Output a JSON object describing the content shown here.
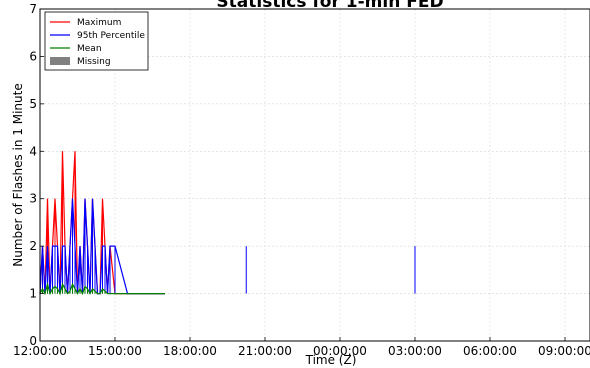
{
  "chart_data": {
    "type": "line",
    "title": "Statistics for 1-min FED",
    "xlabel": "Time (Z)",
    "ylabel": "Number of Flashes in 1 Minute",
    "xlim": [
      "12:00:00",
      "10:00:00"
    ],
    "ylim": [
      0,
      7
    ],
    "x_tick_labels": [
      "12:00:00",
      "15:00:00",
      "18:00:00",
      "21:00:00",
      "00:00:00",
      "03:00:00",
      "06:00:00",
      "09:00:00"
    ],
    "x_tick_offsets_hours": [
      0,
      3,
      6,
      9,
      12,
      15,
      18,
      21
    ],
    "y_ticks": [
      0,
      1,
      2,
      3,
      4,
      5,
      6,
      7
    ],
    "grid": true,
    "legend_position": "top-left",
    "series": [
      {
        "name": "Maximum",
        "color": "#ff0000",
        "x": [
          "12:00:00",
          "12:06:00",
          "12:12:00",
          "12:18:00",
          "12:24:00",
          "12:30:00",
          "12:36:00",
          "12:42:00",
          "12:48:00",
          "12:54:00",
          "13:00:00",
          "13:06:00",
          "13:12:00",
          "13:18:00",
          "13:24:00",
          "13:30:00",
          "13:36:00",
          "13:42:00",
          "13:48:00",
          "13:54:00",
          "14:00:00",
          "14:06:00",
          "14:12:00",
          "14:18:00",
          "14:24:00",
          "14:30:00",
          "14:36:00",
          "14:42:00",
          "14:48:00",
          "15:00:00",
          "15:30:00",
          "16:00:00",
          "16:30:00",
          "17:00:00",
          "20:15:00",
          "03:00:00"
        ],
        "values": [
          1,
          2,
          1,
          3,
          1,
          2,
          3,
          2,
          1,
          4,
          2,
          1,
          2,
          3,
          4,
          1,
          2,
          1,
          3,
          2,
          1,
          3,
          2,
          1,
          1,
          3,
          2,
          1,
          2,
          1,
          1,
          1,
          1,
          1,
          1,
          1
        ]
      },
      {
        "name": "95th Percentile",
        "color": "#0000ff",
        "x": [
          "12:00:00",
          "12:06:00",
          "12:12:00",
          "12:18:00",
          "12:24:00",
          "12:30:00",
          "12:36:00",
          "12:42:00",
          "12:48:00",
          "12:54:00",
          "13:00:00",
          "13:06:00",
          "13:12:00",
          "13:18:00",
          "13:24:00",
          "13:30:00",
          "13:36:00",
          "13:42:00",
          "13:48:00",
          "13:54:00",
          "14:00:00",
          "14:06:00",
          "14:12:00",
          "14:18:00",
          "14:24:00",
          "14:30:00",
          "14:36:00",
          "14:42:00",
          "14:48:00",
          "15:00:00",
          "15:30:00",
          "16:00:00",
          "16:30:00",
          "17:00:00",
          "20:15:00",
          "03:00:00"
        ],
        "values": [
          1,
          2,
          1,
          2,
          1,
          2,
          2,
          2,
          1,
          2,
          2,
          1,
          2,
          3,
          2,
          1,
          2,
          1,
          3,
          2,
          1,
          3,
          2,
          1,
          1,
          2,
          2,
          1,
          2,
          2,
          1,
          1,
          1,
          1,
          2,
          2
        ]
      },
      {
        "name": "Mean",
        "color": "#008000",
        "x": [
          "12:00:00",
          "12:06:00",
          "12:12:00",
          "12:18:00",
          "12:24:00",
          "12:30:00",
          "12:36:00",
          "12:42:00",
          "12:48:00",
          "12:54:00",
          "13:00:00",
          "13:06:00",
          "13:12:00",
          "13:18:00",
          "13:24:00",
          "13:30:00",
          "13:36:00",
          "13:42:00",
          "13:48:00",
          "13:54:00",
          "14:00:00",
          "14:06:00",
          "14:12:00",
          "14:18:00",
          "14:24:00",
          "14:30:00",
          "14:36:00",
          "14:42:00",
          "14:48:00",
          "15:00:00",
          "15:30:00",
          "16:00:00",
          "16:30:00",
          "17:00:00",
          "20:15:00",
          "03:00:00"
        ],
        "values": [
          1,
          1.1,
          1,
          1.2,
          1,
          1.1,
          1.15,
          1.1,
          1,
          1.2,
          1.1,
          1,
          1.05,
          1.2,
          1.1,
          1,
          1.1,
          1,
          1.15,
          1.1,
          1,
          1.1,
          1.05,
          1,
          1,
          1.1,
          1.05,
          1,
          1,
          1,
          1,
          1,
          1,
          1,
          1,
          1
        ]
      }
    ],
    "legend": [
      {
        "name": "Maximum",
        "kind": "line",
        "color": "#ff0000"
      },
      {
        "name": "95th Percentile",
        "kind": "line",
        "color": "#0000ff"
      },
      {
        "name": "Mean",
        "kind": "line",
        "color": "#008000"
      },
      {
        "name": "Missing",
        "kind": "patch",
        "color": "#808080"
      }
    ]
  }
}
